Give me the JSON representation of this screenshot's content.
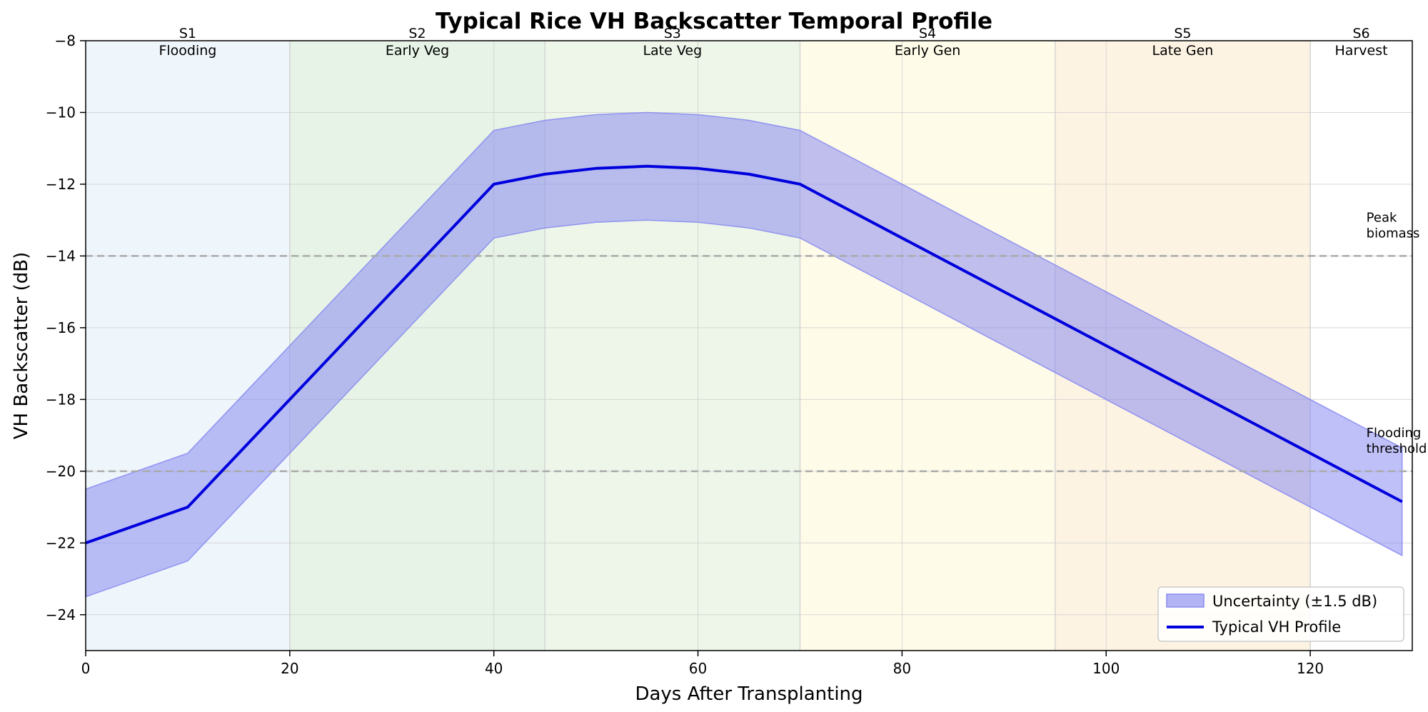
{
  "chart_data": {
    "type": "line",
    "title": "Typical Rice VH Backscatter Temporal Profile",
    "xlabel": "Days After Transplanting",
    "ylabel": "VH Backscatter (dB)",
    "xlim": [
      0,
      130
    ],
    "ylim": [
      -25,
      -8
    ],
    "xticks": [
      0,
      20,
      40,
      60,
      80,
      100,
      120
    ],
    "yticks": [
      -24,
      -22,
      -20,
      -18,
      -16,
      -14,
      -12,
      -10,
      -8
    ],
    "grid": true,
    "legend_position": "bottom-right",
    "stages": [
      {
        "code": "S1",
        "name": "Flooding",
        "start": 0,
        "end": 20,
        "color": "#eef5fb"
      },
      {
        "code": "S2",
        "name": "Early Veg",
        "start": 20,
        "end": 45,
        "color": "#e6f3e6"
      },
      {
        "code": "S3",
        "name": "Late Veg",
        "start": 45,
        "end": 70,
        "color": "#edf6e8"
      },
      {
        "code": "S4",
        "name": "Early Gen",
        "start": 70,
        "end": 95,
        "color": "#fefbe8"
      },
      {
        "code": "S5",
        "name": "Late Gen",
        "start": 95,
        "end": 120,
        "color": "#fdf3e3"
      },
      {
        "code": "S6",
        "name": "Harvest",
        "start": 120,
        "end": 130,
        "color": "#ffffff"
      }
    ],
    "reference_lines": [
      {
        "y": -14,
        "label": "Peak\nbiomass",
        "color": "#aaaaaa"
      },
      {
        "y": -20,
        "label": "Flooding\nthreshold",
        "color": "#aaaaaa"
      }
    ],
    "series": [
      {
        "name": "Typical VH Profile",
        "color": "#0000dd",
        "x": [
          0,
          10,
          20,
          30,
          40,
          45,
          50,
          55,
          60,
          65,
          70,
          80,
          90,
          95,
          100,
          110,
          120,
          129
        ],
        "y": [
          -22,
          -21,
          -18,
          -15,
          -12,
          -11.72,
          -11.56,
          -11.5,
          -11.56,
          -11.72,
          -12,
          -13.5,
          -15,
          -15.75,
          -16.5,
          -18,
          -19.5,
          -20.85
        ]
      }
    ],
    "band": {
      "name": "Uncertainty (±1.5 dB)",
      "half_width": 1.5,
      "color": "#8a8cf0"
    }
  }
}
